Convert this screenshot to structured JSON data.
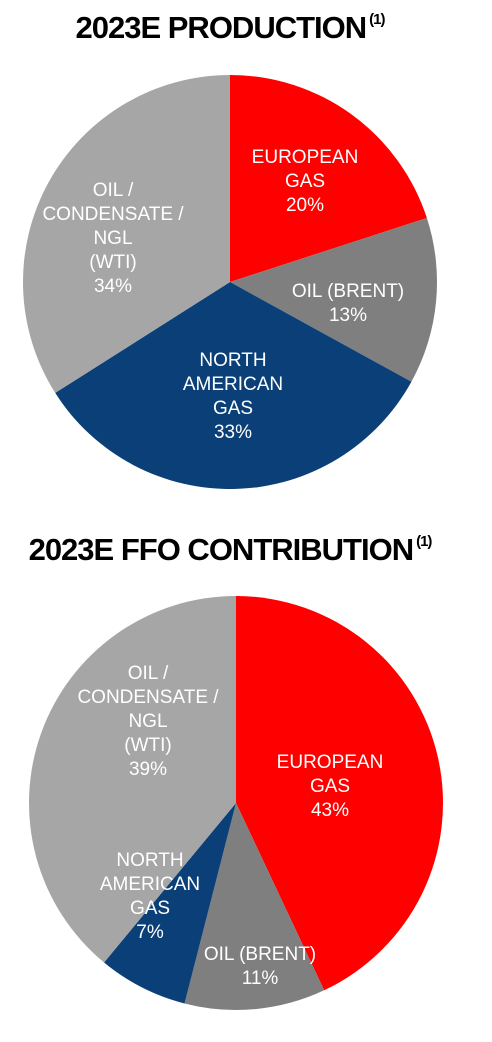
{
  "colors": {
    "european_gas": "#ff0000",
    "oil_brent": "#7f7f7f",
    "north_american_gas": "#0b3f78",
    "oil_condensate_ngl": "#a6a6a6"
  },
  "chart_data": [
    {
      "type": "pie",
      "title": "2023E PRODUCTION",
      "title_note": "(1)",
      "slices": [
        {
          "label": [
            "EUROPEAN",
            "GAS"
          ],
          "value_label": "20%",
          "value": 20,
          "color": "#ff0000"
        },
        {
          "label": [
            "OIL (BRENT)"
          ],
          "value_label": "13%",
          "value": 13,
          "color": "#7f7f7f"
        },
        {
          "label": [
            "NORTH",
            "AMERICAN",
            "GAS"
          ],
          "value_label": "33%",
          "value": 33,
          "color": "#0b3f78"
        },
        {
          "label": [
            "OIL /",
            "CONDENSATE /",
            "NGL",
            "(WTI)"
          ],
          "value_label": "34%",
          "value": 34,
          "color": "#a6a6a6"
        }
      ]
    },
    {
      "type": "pie",
      "title": "2023E FFO CONTRIBUTION",
      "title_note": "(1)",
      "slices": [
        {
          "label": [
            "EUROPEAN",
            "GAS"
          ],
          "value_label": "43%",
          "value": 43,
          "color": "#ff0000"
        },
        {
          "label": [
            "OIL (BRENT)"
          ],
          "value_label": "11%",
          "value": 11,
          "color": "#7f7f7f"
        },
        {
          "label": [
            "NORTH",
            "AMERICAN",
            "GAS"
          ],
          "value_label": "7%",
          "value": 7,
          "color": "#0b3f78"
        },
        {
          "label": [
            "OIL /",
            "CONDENSATE /",
            "NGL",
            "(WTI)"
          ],
          "value_label": "39%",
          "value": 39,
          "color": "#a6a6a6"
        }
      ]
    }
  ]
}
